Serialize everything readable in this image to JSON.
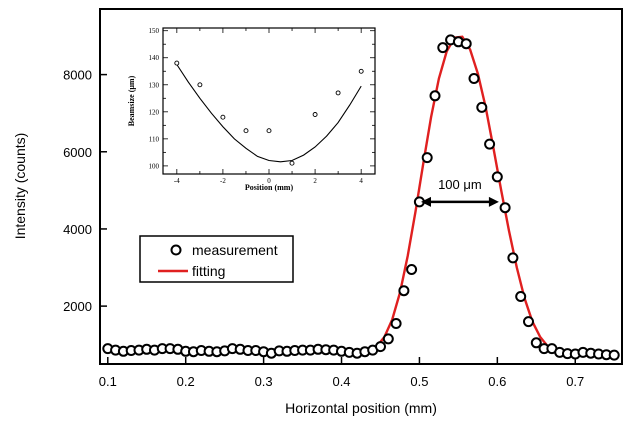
{
  "chart_data": [
    {
      "id": "main",
      "type": "scatter",
      "xlabel": "Horizontal position (mm)",
      "ylabel": "Intensity (counts)",
      "xlim": [
        0.09,
        0.76
      ],
      "ylim": [
        500,
        9700
      ],
      "xticks": [
        0.1,
        0.2,
        0.3,
        0.4,
        0.5,
        0.6,
        0.7
      ],
      "xtick_labels": [
        "0.1",
        "0.2",
        "0.3",
        "0.4",
        "0.5",
        "0.6",
        "0.7"
      ],
      "yticks": [
        2000,
        4000,
        6000,
        8000
      ],
      "ytick_labels": [
        "2000",
        "4000",
        "6000",
        "8000"
      ],
      "series": [
        {
          "name": "measurement",
          "kind": "markers",
          "x": [
            0.1,
            0.11,
            0.12,
            0.13,
            0.14,
            0.15,
            0.16,
            0.17,
            0.18,
            0.19,
            0.2,
            0.21,
            0.22,
            0.23,
            0.24,
            0.25,
            0.26,
            0.27,
            0.28,
            0.29,
            0.3,
            0.31,
            0.32,
            0.33,
            0.34,
            0.35,
            0.36,
            0.37,
            0.38,
            0.39,
            0.4,
            0.41,
            0.42,
            0.43,
            0.44,
            0.45,
            0.46,
            0.47,
            0.48,
            0.49,
            0.5,
            0.51,
            0.52,
            0.53,
            0.54,
            0.55,
            0.56,
            0.57,
            0.58,
            0.59,
            0.6,
            0.61,
            0.62,
            0.63,
            0.64,
            0.65,
            0.66,
            0.67,
            0.68,
            0.69,
            0.7,
            0.71,
            0.72,
            0.73,
            0.74,
            0.75
          ],
          "y": [
            900,
            860,
            830,
            850,
            860,
            880,
            860,
            900,
            900,
            880,
            830,
            820,
            850,
            830,
            820,
            840,
            900,
            880,
            850,
            850,
            820,
            780,
            840,
            830,
            850,
            860,
            860,
            880,
            870,
            860,
            830,
            800,
            780,
            820,
            860,
            950,
            1150,
            1550,
            2400,
            2950,
            4700,
            5850,
            7450,
            8700,
            8900,
            8850,
            8800,
            7900,
            7150,
            6200,
            5350,
            4550,
            3250,
            2250,
            1600,
            1050,
            900,
            900,
            800,
            770,
            760,
            800,
            780,
            760,
            740,
            730
          ]
        },
        {
          "name": "fitting",
          "kind": "line",
          "color": "#e02020",
          "x": [
            0.415,
            0.425,
            0.435,
            0.445,
            0.455,
            0.465,
            0.475,
            0.485,
            0.495,
            0.505,
            0.515,
            0.525,
            0.535,
            0.545,
            0.555,
            0.565,
            0.575,
            0.585,
            0.595,
            0.605,
            0.615,
            0.625,
            0.635,
            0.645,
            0.655,
            0.665,
            0.675,
            0.685,
            0.695,
            0.705,
            0.715,
            0.725,
            0.735,
            0.745,
            0.75
          ],
          "y": [
            740,
            760,
            830,
            950,
            1200,
            1650,
            2350,
            3300,
            4450,
            5700,
            6900,
            7900,
            8600,
            8960,
            8980,
            8650,
            8020,
            7150,
            6100,
            5000,
            3950,
            3000,
            2200,
            1600,
            1200,
            950,
            820,
            760,
            730,
            720,
            715,
            710,
            705,
            700,
            700
          ]
        }
      ],
      "annotation": {
        "text": "100 μm",
        "from_x": 0.502,
        "to_x": 0.602,
        "y": 4700
      },
      "legend": {
        "position": "center-left",
        "entries": [
          "measurement",
          "fitting"
        ]
      }
    },
    {
      "id": "inset",
      "type": "scatter",
      "xlabel": "Position (mm)",
      "ylabel": "Beamsize (μm)",
      "xlim": [
        -4.6,
        4.6
      ],
      "ylim": [
        97,
        151
      ],
      "xticks": [
        -4,
        -2,
        0,
        2,
        4
      ],
      "xtick_labels": [
        "-4",
        "-2",
        "0",
        "2",
        "4"
      ],
      "yticks": [
        100,
        110,
        120,
        130,
        140,
        150
      ],
      "ytick_labels": [
        "100",
        "110",
        "120",
        "130",
        "140",
        "150"
      ],
      "series": [
        {
          "name": "beamsize",
          "kind": "markers",
          "x": [
            -4,
            -3,
            -2,
            -1,
            0,
            1,
            2,
            3,
            4
          ],
          "y": [
            138,
            130,
            118,
            113,
            113,
            101,
            119,
            127,
            135
          ]
        },
        {
          "name": "fit",
          "kind": "line",
          "x": [
            -4,
            -3.5,
            -3,
            -2.5,
            -2,
            -1.5,
            -1,
            -0.5,
            0,
            0.5,
            1,
            1.5,
            2,
            2.5,
            3,
            3.5,
            4
          ],
          "y": [
            137.5,
            131.0,
            125.0,
            119.5,
            114.5,
            110.0,
            106.5,
            103.5,
            102.0,
            101.5,
            102.0,
            104.0,
            107.0,
            111.0,
            116.0,
            122.5,
            129.5
          ]
        }
      ]
    }
  ]
}
